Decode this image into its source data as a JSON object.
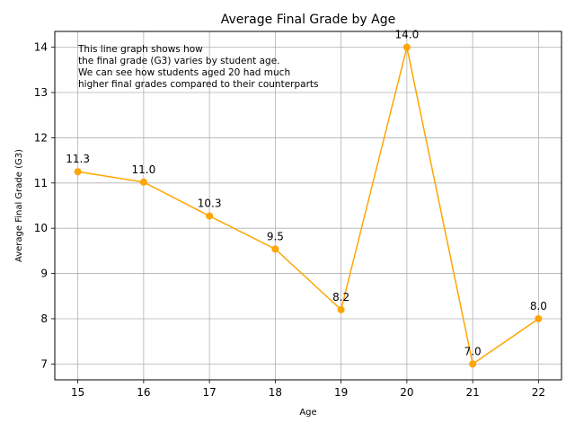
{
  "chart_data": {
    "type": "line",
    "title": "Average Final Grade by Age",
    "xlabel": "Age",
    "ylabel": "Average Final Grade (G3)",
    "x": [
      15,
      16,
      17,
      18,
      19,
      20,
      21,
      22
    ],
    "series": [
      {
        "values": [
          11.25,
          11.02,
          10.27,
          9.54,
          8.2,
          14.0,
          7.0,
          8.0
        ],
        "color": "#ffa500"
      }
    ],
    "data_labels": [
      "11.3",
      "11.0",
      "10.3",
      "9.5",
      "8.2",
      "14.0",
      "7.0",
      "8.0"
    ],
    "xticks": [
      15,
      16,
      17,
      18,
      19,
      20,
      21,
      22
    ],
    "yticks": [
      7,
      8,
      9,
      10,
      11,
      12,
      13,
      14
    ],
    "xlim": [
      14.65,
      22.35
    ],
    "ylim": [
      6.65,
      14.35
    ],
    "grid": true,
    "annotation": [
      "This line graph shows how",
      "the final grade (G3) varies by student age.",
      "We can see how students aged 20 had much",
      "higher final grades compared to their counterparts"
    ]
  }
}
